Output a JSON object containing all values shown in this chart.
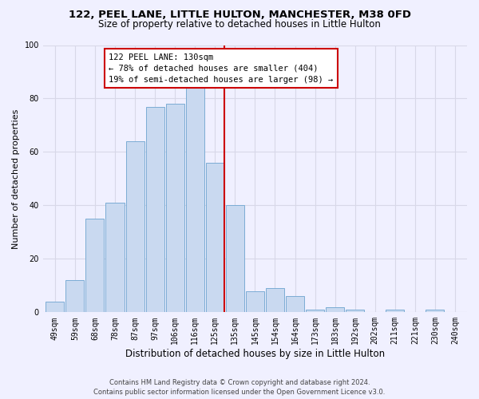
{
  "title": "122, PEEL LANE, LITTLE HULTON, MANCHESTER, M38 0FD",
  "subtitle": "Size of property relative to detached houses in Little Hulton",
  "xlabel": "Distribution of detached houses by size in Little Hulton",
  "ylabel": "Number of detached properties",
  "bar_labels": [
    "49sqm",
    "59sqm",
    "68sqm",
    "78sqm",
    "87sqm",
    "97sqm",
    "106sqm",
    "116sqm",
    "125sqm",
    "135sqm",
    "145sqm",
    "154sqm",
    "164sqm",
    "173sqm",
    "183sqm",
    "192sqm",
    "202sqm",
    "211sqm",
    "221sqm",
    "230sqm",
    "240sqm"
  ],
  "bar_values": [
    4,
    12,
    35,
    41,
    64,
    77,
    78,
    84,
    56,
    40,
    8,
    9,
    6,
    1,
    2,
    1,
    0,
    1,
    0,
    1,
    0
  ],
  "bar_color": "#c9d9f0",
  "bar_edgecolor": "#7bacd4",
  "marker_index": 8,
  "marker_color": "#cc0000",
  "ylim": [
    0,
    100
  ],
  "annotation_title": "122 PEEL LANE: 130sqm",
  "annotation_line1": "← 78% of detached houses are smaller (404)",
  "annotation_line2": "19% of semi-detached houses are larger (98) →",
  "annotation_box_color": "#ffffff",
  "annotation_box_edgecolor": "#cc0000",
  "footer_line1": "Contains HM Land Registry data © Crown copyright and database right 2024.",
  "footer_line2": "Contains public sector information licensed under the Open Government Licence v3.0.",
  "background_color": "#f0f0ff",
  "grid_color": "#d8d8e8",
  "title_fontsize": 9.5,
  "subtitle_fontsize": 8.5,
  "ylabel_fontsize": 8,
  "xlabel_fontsize": 8.5,
  "tick_fontsize": 7,
  "footer_fontsize": 6,
  "ann_fontsize": 7.5
}
